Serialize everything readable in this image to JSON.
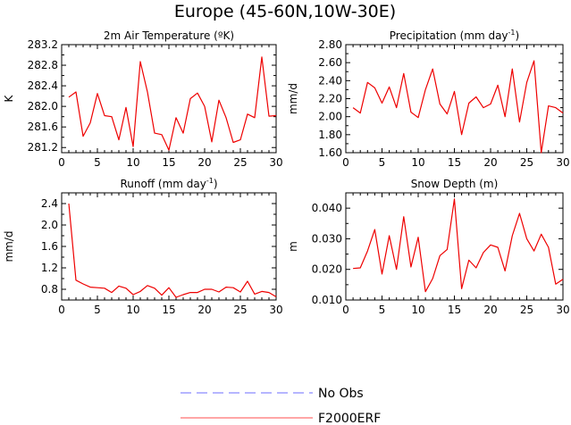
{
  "title": "Europe (45-60N,10W-30E)",
  "legend": [
    {
      "label": "No Obs",
      "color": "#8a8aff",
      "dashed": true
    },
    {
      "label": "F2000ERF",
      "color": "#ff7070",
      "dashed": false
    }
  ],
  "line_color": "#ee0000",
  "chart_data": [
    {
      "type": "line",
      "title": "2m Air Temperature (ºK)",
      "ylabel": "K",
      "xlim": [
        0,
        30
      ],
      "ylim": [
        281.1,
        283.2
      ],
      "xticks": [
        0,
        5,
        10,
        15,
        20,
        25,
        30
      ],
      "yticks": [
        281.2,
        281.6,
        282.0,
        282.4,
        282.8,
        283.2
      ],
      "ytick_labels": [
        "281.2",
        "281.6",
        "282.0",
        "282.4",
        "282.8",
        "283.2"
      ],
      "x": [
        1,
        2,
        3,
        4,
        5,
        6,
        7,
        8,
        9,
        10,
        11,
        12,
        13,
        14,
        15,
        16,
        17,
        18,
        19,
        20,
        21,
        22,
        23,
        24,
        25,
        26,
        27,
        28,
        29,
        30
      ],
      "series": [
        {
          "name": "F2000ERF",
          "values": [
            282.18,
            282.28,
            281.42,
            281.68,
            282.25,
            281.82,
            281.8,
            281.35,
            281.98,
            281.22,
            282.87,
            282.28,
            281.48,
            281.45,
            281.15,
            281.78,
            281.48,
            282.15,
            282.26,
            282.0,
            281.31,
            282.12,
            281.78,
            281.3,
            281.35,
            281.85,
            281.78,
            282.96,
            281.81,
            281.82
          ]
        }
      ]
    },
    {
      "type": "line",
      "title": "Precipitation (mm day-1)",
      "ylabel": "mm/d",
      "xlim": [
        0,
        30
      ],
      "ylim": [
        1.6,
        2.8
      ],
      "xticks": [
        0,
        5,
        10,
        15,
        20,
        25,
        30
      ],
      "yticks": [
        1.6,
        1.8,
        2.0,
        2.2,
        2.4,
        2.6,
        2.8
      ],
      "ytick_labels": [
        "1.60",
        "1.80",
        "2.00",
        "2.20",
        "2.40",
        "2.60",
        "2.80"
      ],
      "x": [
        1,
        2,
        3,
        4,
        5,
        6,
        7,
        8,
        9,
        10,
        11,
        12,
        13,
        14,
        15,
        16,
        17,
        18,
        19,
        20,
        21,
        22,
        23,
        24,
        25,
        26,
        27,
        28,
        29,
        30
      ],
      "series": [
        {
          "name": "F2000ERF",
          "values": [
            2.1,
            2.04,
            2.38,
            2.32,
            2.15,
            2.33,
            2.1,
            2.48,
            2.05,
            1.99,
            2.3,
            2.53,
            2.14,
            2.03,
            2.28,
            1.8,
            2.15,
            2.22,
            2.1,
            2.14,
            2.35,
            2.0,
            2.53,
            1.94,
            2.38,
            2.62,
            1.6,
            2.12,
            2.1,
            2.04
          ]
        }
      ]
    },
    {
      "type": "line",
      "title": "Runoff (mm day-1)",
      "ylabel": "mm/d",
      "xlim": [
        0,
        30
      ],
      "ylim": [
        0.6,
        2.6
      ],
      "xticks": [
        0,
        5,
        10,
        15,
        20,
        25,
        30
      ],
      "yticks": [
        0.8,
        1.2,
        1.6,
        2.0,
        2.4
      ],
      "ytick_labels": [
        "0.8",
        "1.2",
        "1.6",
        "2.0",
        "2.4"
      ],
      "x": [
        1,
        2,
        3,
        4,
        5,
        6,
        7,
        8,
        9,
        10,
        11,
        12,
        13,
        14,
        15,
        16,
        17,
        18,
        19,
        20,
        21,
        22,
        23,
        24,
        25,
        26,
        27,
        28,
        29,
        30
      ],
      "series": [
        {
          "name": "F2000ERF",
          "values": [
            2.4,
            0.97,
            0.9,
            0.84,
            0.83,
            0.82,
            0.74,
            0.86,
            0.82,
            0.7,
            0.76,
            0.87,
            0.82,
            0.69,
            0.83,
            0.65,
            0.7,
            0.74,
            0.74,
            0.8,
            0.8,
            0.75,
            0.84,
            0.83,
            0.75,
            0.95,
            0.71,
            0.76,
            0.74,
            0.66
          ]
        }
      ]
    },
    {
      "type": "line",
      "title": "Snow Depth (m)",
      "ylabel": "m",
      "xlim": [
        0,
        30
      ],
      "ylim": [
        0.01,
        0.045
      ],
      "xticks": [
        0,
        5,
        10,
        15,
        20,
        25,
        30
      ],
      "yticks": [
        0.01,
        0.02,
        0.03,
        0.04
      ],
      "ytick_labels": [
        "0.010",
        "0.020",
        "0.030",
        "0.040"
      ],
      "x": [
        1,
        2,
        3,
        4,
        5,
        6,
        7,
        8,
        9,
        10,
        11,
        12,
        13,
        14,
        15,
        16,
        17,
        18,
        19,
        20,
        21,
        22,
        23,
        24,
        25,
        26,
        27,
        28,
        29,
        30
      ],
      "series": [
        {
          "name": "F2000ERF",
          "values": [
            0.0203,
            0.0205,
            0.026,
            0.033,
            0.0185,
            0.031,
            0.02,
            0.0372,
            0.0208,
            0.0305,
            0.0127,
            0.017,
            0.0245,
            0.0265,
            0.043,
            0.0137,
            0.023,
            0.0205,
            0.0255,
            0.028,
            0.0272,
            0.0195,
            0.031,
            0.0383,
            0.03,
            0.026,
            0.0315,
            0.0272,
            0.0152,
            0.0168
          ]
        }
      ]
    }
  ]
}
